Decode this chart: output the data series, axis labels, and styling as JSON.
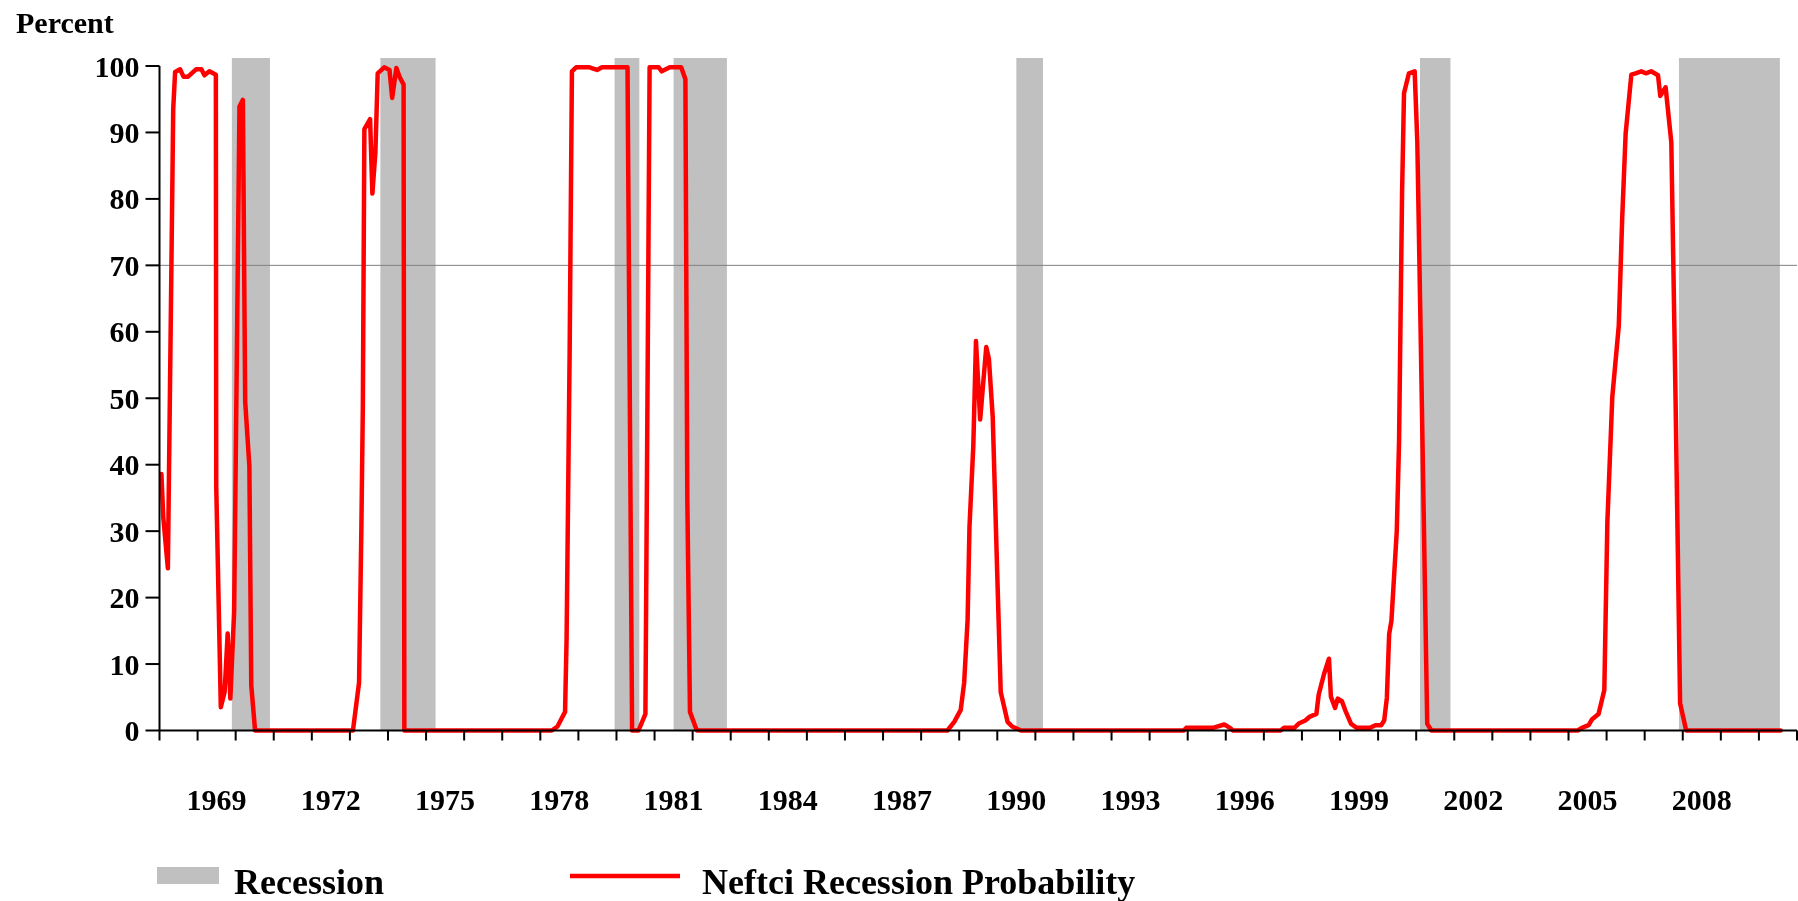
{
  "chart_data": {
    "type": "line",
    "ylabel": "Percent",
    "xlim": [
      1968,
      2011
    ],
    "ylim": [
      0,
      100
    ],
    "yticks": [
      0,
      10,
      20,
      30,
      40,
      50,
      60,
      70,
      80,
      90,
      100
    ],
    "xticks": [
      {
        "value": 1968,
        "label": null
      },
      {
        "value": 1969,
        "label": null
      },
      {
        "value": 1969.5,
        "label": "1969"
      },
      {
        "value": 1970,
        "label": null
      },
      {
        "value": 1971,
        "label": null
      },
      {
        "value": 1972,
        "label": null
      },
      {
        "value": 1972.5,
        "label": "1972"
      },
      {
        "value": 1973,
        "label": null
      },
      {
        "value": 1974,
        "label": null
      },
      {
        "value": 1975,
        "label": null
      },
      {
        "value": 1975.5,
        "label": "1975"
      },
      {
        "value": 1976,
        "label": null
      },
      {
        "value": 1977,
        "label": null
      },
      {
        "value": 1978,
        "label": null
      },
      {
        "value": 1978.5,
        "label": "1978"
      },
      {
        "value": 1979,
        "label": null
      },
      {
        "value": 1980,
        "label": null
      },
      {
        "value": 1981,
        "label": null
      },
      {
        "value": 1981.5,
        "label": "1981"
      },
      {
        "value": 1982,
        "label": null
      },
      {
        "value": 1983,
        "label": null
      },
      {
        "value": 1984,
        "label": null
      },
      {
        "value": 1984.5,
        "label": "1984"
      },
      {
        "value": 1985,
        "label": null
      },
      {
        "value": 1986,
        "label": null
      },
      {
        "value": 1987,
        "label": null
      },
      {
        "value": 1987.5,
        "label": "1987"
      },
      {
        "value": 1988,
        "label": null
      },
      {
        "value": 1989,
        "label": null
      },
      {
        "value": 1990,
        "label": null
      },
      {
        "value": 1990.5,
        "label": "1990"
      },
      {
        "value": 1991,
        "label": null
      },
      {
        "value": 1992,
        "label": null
      },
      {
        "value": 1993,
        "label": null
      },
      {
        "value": 1993.5,
        "label": "1993"
      },
      {
        "value": 1994,
        "label": null
      },
      {
        "value": 1995,
        "label": null
      },
      {
        "value": 1996,
        "label": null
      },
      {
        "value": 1996.5,
        "label": "1996"
      },
      {
        "value": 1997,
        "label": null
      },
      {
        "value": 1998,
        "label": null
      },
      {
        "value": 1999,
        "label": null
      },
      {
        "value": 1999.5,
        "label": "1999"
      },
      {
        "value": 2000,
        "label": null
      },
      {
        "value": 2001,
        "label": null
      },
      {
        "value": 2002,
        "label": null
      },
      {
        "value": 2002.5,
        "label": "2002"
      },
      {
        "value": 2003,
        "label": null
      },
      {
        "value": 2004,
        "label": null
      },
      {
        "value": 2005,
        "label": null
      },
      {
        "value": 2005.5,
        "label": "2005"
      },
      {
        "value": 2006,
        "label": null
      },
      {
        "value": 2007,
        "label": null
      },
      {
        "value": 2008,
        "label": null
      },
      {
        "value": 2008.5,
        "label": "2008"
      },
      {
        "value": 2009,
        "label": null
      },
      {
        "value": 2010,
        "label": null
      },
      {
        "value": 2011,
        "label": null
      }
    ],
    "grid": false,
    "legend": "bottom",
    "line_style": "solid",
    "marker": "none",
    "bands": [
      {
        "axis": "x",
        "from": 1969.9,
        "to": 1970.9,
        "label": "Recession",
        "color": "#c0c0c0"
      },
      {
        "axis": "x",
        "from": 1973.8,
        "to": 1975.25,
        "color": "#c0c0c0"
      },
      {
        "axis": "x",
        "from": 1979.95,
        "to": 1980.6,
        "color": "#c0c0c0"
      },
      {
        "axis": "x",
        "from": 1981.5,
        "to": 1982.9,
        "color": "#c0c0c0"
      },
      {
        "axis": "x",
        "from": 1990.5,
        "to": 1991.2,
        "color": "#c0c0c0"
      },
      {
        "axis": "x",
        "from": 2001.1,
        "to": 2001.9,
        "color": "#c0c0c0"
      },
      {
        "axis": "x",
        "from": 2007.9,
        "to": 2010.55,
        "color": "#c0c0c0"
      }
    ],
    "ref_lines": [
      {
        "axis": "y",
        "value": 70,
        "color": "#808080",
        "line_style": "solid"
      }
    ],
    "series": [
      {
        "name": "Neftci Recession Probability",
        "color": "#ff0000",
        "x": [
          1968.05,
          1968.1,
          1968.22,
          1968.3,
          1968.36,
          1968.41,
          1968.54,
          1968.63,
          1968.75,
          1968.96,
          1969.1,
          1969.18,
          1969.31,
          1969.48,
          1969.49,
          1969.61,
          1969.71,
          1969.79,
          1969.86,
          1969.96,
          1970.1,
          1970.19,
          1970.25,
          1970.36,
          1970.41,
          1970.51,
          1973.08,
          1973.24,
          1973.3,
          1973.34,
          1973.38,
          1973.53,
          1973.59,
          1973.67,
          1973.73,
          1973.9,
          1974.04,
          1974.11,
          1974.22,
          1974.31,
          1974.41,
          1974.43,
          1978.3,
          1978.45,
          1978.65,
          1978.69,
          1978.77,
          1978.83,
          1978.94,
          1979.29,
          1979.49,
          1979.62,
          1980.29,
          1980.41,
          1980.58,
          1980.76,
          1980.87,
          1981.11,
          1981.19,
          1981.4,
          1981.7,
          1981.81,
          1981.86,
          1981.93,
          1982.11,
          1988.69,
          1988.87,
          1989.04,
          1989.13,
          1989.22,
          1989.27,
          1989.37,
          1989.44,
          1989.55,
          1989.71,
          1989.78,
          1989.88,
          1990.0,
          1990.09,
          1990.27,
          1990.39,
          1990.62,
          1994.9,
          1994.96,
          1995.66,
          1995.96,
          1996.11,
          1996.19,
          1997.44,
          1997.53,
          1997.8,
          1997.93,
          1998.09,
          1998.21,
          1998.38,
          1998.44,
          1998.58,
          1998.71,
          1998.76,
          1998.87,
          1998.94,
          1999.05,
          1999.14,
          1999.29,
          1999.44,
          1999.79,
          1999.93,
          2000.08,
          2000.16,
          2000.23,
          2000.29,
          2000.35,
          2000.49,
          2000.55,
          2000.63,
          2000.68,
          2000.81,
          2000.96,
          2001.03,
          2001.14,
          2001.29,
          2001.4,
          2005.24,
          2005.35,
          2005.53,
          2005.62,
          2005.79,
          2005.94,
          2006.02,
          2006.15,
          2006.32,
          2006.41,
          2006.5,
          2006.65,
          2006.76,
          2006.91,
          2007.03,
          2007.17,
          2007.35,
          2007.41,
          2007.55,
          2007.7,
          2007.81,
          2007.93,
          2008.09,
          2010.57
        ],
        "values": [
          38.6,
          32,
          24.4,
          63.6,
          93.5,
          99.1,
          99.5,
          98.4,
          98.4,
          99.5,
          99.5,
          98.6,
          99.2,
          98.7,
          36.7,
          3.5,
          5.8,
          14.6,
          4.8,
          17.9,
          93.9,
          94.9,
          49.5,
          39.8,
          6.8,
          0,
          0,
          7.2,
          30,
          48.9,
          90.5,
          92,
          80.8,
          87.1,
          98.9,
          99.8,
          99.4,
          95.2,
          99.7,
          98.3,
          97.2,
          0,
          0,
          0.6,
          2.8,
          13.9,
          56.9,
          99.2,
          99.8,
          99.8,
          99.4,
          99.8,
          99.8,
          0,
          0,
          2.5,
          99.8,
          99.8,
          99.2,
          99.8,
          99.8,
          98,
          35,
          2.8,
          0,
          0,
          1.3,
          3.1,
          7.2,
          16.6,
          30.7,
          42.8,
          58.6,
          46.8,
          57.7,
          55.9,
          47.2,
          23.3,
          5.8,
          1.3,
          0.6,
          0,
          0,
          0.4,
          0.4,
          0.9,
          0.4,
          0,
          0,
          0.4,
          0.4,
          1.1,
          1.5,
          2.1,
          2.5,
          5.4,
          8.5,
          10.8,
          5.1,
          3.4,
          4.8,
          4.4,
          3,
          1,
          0.4,
          0.4,
          0.8,
          0.8,
          1.5,
          4.9,
          14.5,
          16.5,
          30,
          43.4,
          81.1,
          95.9,
          98.9,
          99.2,
          88.5,
          52.2,
          1,
          0,
          0,
          0.4,
          0.8,
          1.7,
          2.5,
          6.1,
          31.3,
          50.2,
          60.9,
          77.1,
          89.8,
          98.7,
          98.9,
          99.2,
          98.9,
          99.2,
          98.6,
          95.5,
          96.8,
          88.5,
          50.2,
          4.1,
          0,
          0
        ]
      }
    ]
  }
}
